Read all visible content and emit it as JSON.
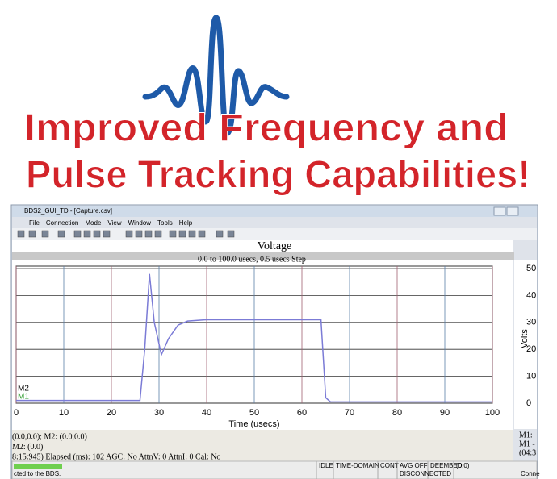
{
  "headline": {
    "line1": "Improved Frequency and",
    "line2": "Pulse Tracking Capabilities!"
  },
  "window": {
    "title": "BDS2_GUI_TD - [Capture.csv]",
    "menus": [
      "File",
      "Connection",
      "Mode",
      "View",
      "Window",
      "Tools",
      "Help"
    ]
  },
  "chart_data": {
    "type": "line",
    "title": "Voltage",
    "subtitle": "0.0 to 100.0 usecs, 0.5 usecs Step",
    "x_label": "Time (usecs)",
    "y_label": "Volts",
    "x": [
      0,
      26,
      27,
      28,
      29,
      30.5,
      32,
      34,
      36,
      40,
      50,
      60,
      64,
      65,
      66,
      70,
      80,
      90,
      100
    ],
    "series": [
      {
        "name": "Voltage",
        "color": "#7b7bd6",
        "values": [
          1,
          1,
          20,
          48,
          30,
          18,
          24,
          29,
          30.5,
          31,
          31,
          31,
          31,
          2,
          0.5,
          0.5,
          0.5,
          0.5,
          0.5
        ]
      }
    ],
    "xlim": [
      0,
      100
    ],
    "xticks": [
      0,
      10,
      20,
      30,
      40,
      50,
      60,
      70,
      80,
      90,
      100
    ],
    "ylim": [
      0,
      50
    ],
    "yticks": [
      0,
      10,
      20,
      30,
      40,
      50
    ],
    "grid": true,
    "markers": [
      "M2",
      "M1"
    ]
  },
  "readouts": {
    "lines": [
      "(0.0,0.0); M2: (0.0,0.0)",
      "M2: (0.0)",
      "8:15:945) Elapsed (ms): 102 AGC: No AttnV: 0 AttnI: 0 Cal: No"
    ],
    "right": [
      "M1:",
      "M1 -",
      "(04:3"
    ]
  },
  "status": {
    "row1": [
      "IDLE",
      "TIME-DOMAIN",
      "CONT",
      "AVG OFF",
      "DEEMBED",
      "(0,0)"
    ],
    "message": "cted to the BDS.",
    "connection": "DISCONNECTED",
    "right": "Conne"
  }
}
